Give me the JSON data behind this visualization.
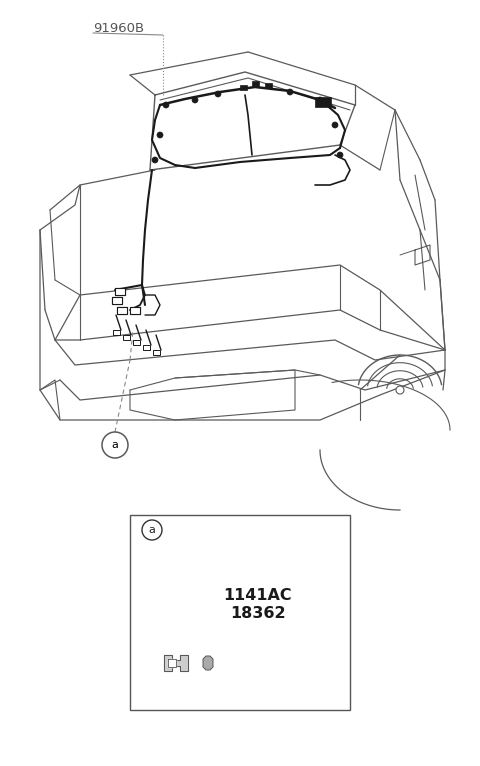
{
  "bg_color": "#ffffff",
  "line_color": "#5a5a5a",
  "wire_color": "#1a1a1a",
  "label_91960B": "91960B",
  "label_a": "a",
  "label_1141AC": "1141AC",
  "label_18362": "18362",
  "fig_width": 4.8,
  "fig_height": 7.66,
  "dpi": 100
}
